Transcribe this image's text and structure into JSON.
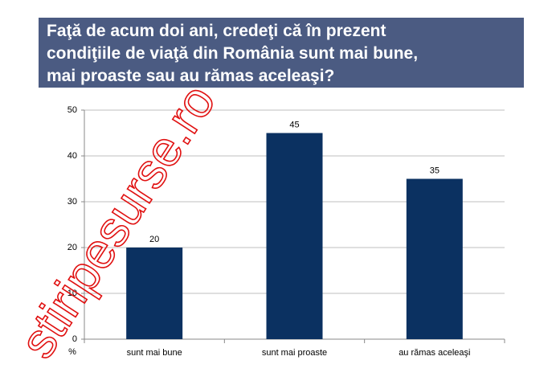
{
  "chart_data": {
    "type": "bar",
    "title": [
      "Faţă de acum doi ani, credeţi că în prezent",
      "condiţiile de viaţă din România sunt mai bune,",
      "mai proaste sau au rămas aceleaşi?"
    ],
    "y_label": "%",
    "categories": [
      "sunt mai bune",
      "sunt mai proaste",
      "au rămas aceleaşi"
    ],
    "values": [
      20,
      45,
      35
    ],
    "color": "#0b3161",
    "ylim": [
      0,
      50
    ],
    "yticks": [
      0,
      10,
      20,
      30,
      40,
      50
    ],
    "grid": true,
    "watermark": "stiripesurse.ro"
  }
}
